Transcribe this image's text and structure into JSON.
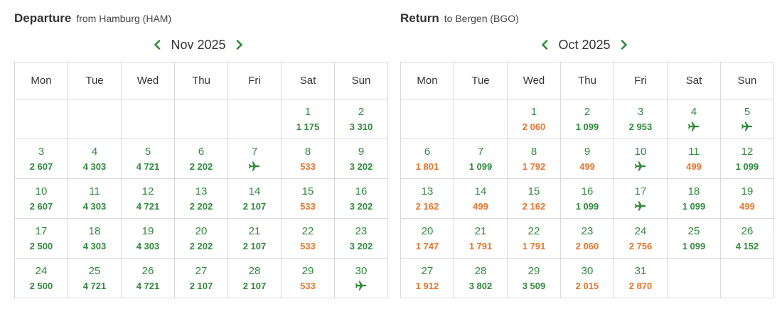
{
  "departure": {
    "title": "Departure",
    "subtitle": "from Hamburg (HAM)",
    "month": "Nov 2025",
    "weekdays": [
      "Mon",
      "Tue",
      "Wed",
      "Thu",
      "Fri",
      "Sat",
      "Sun"
    ],
    "weeks": [
      [
        null,
        null,
        null,
        null,
        null,
        {
          "day": "1",
          "price": "1 175",
          "tone": "green"
        },
        {
          "day": "2",
          "price": "3 310",
          "tone": "green"
        }
      ],
      [
        {
          "day": "3",
          "price": "2 607",
          "tone": "green"
        },
        {
          "day": "4",
          "price": "4 303",
          "tone": "green"
        },
        {
          "day": "5",
          "price": "4 721",
          "tone": "green"
        },
        {
          "day": "6",
          "price": "2 202",
          "tone": "green"
        },
        {
          "day": "7",
          "icon": "plane-icon"
        },
        {
          "day": "8",
          "price": "533",
          "tone": "orange"
        },
        {
          "day": "9",
          "price": "3 202",
          "tone": "green"
        }
      ],
      [
        {
          "day": "10",
          "price": "2 607",
          "tone": "green"
        },
        {
          "day": "11",
          "price": "4 303",
          "tone": "green"
        },
        {
          "day": "12",
          "price": "4 721",
          "tone": "green"
        },
        {
          "day": "13",
          "price": "2 202",
          "tone": "green"
        },
        {
          "day": "14",
          "price": "2 107",
          "tone": "green"
        },
        {
          "day": "15",
          "price": "533",
          "tone": "orange"
        },
        {
          "day": "16",
          "price": "3 202",
          "tone": "green"
        }
      ],
      [
        {
          "day": "17",
          "price": "2 500",
          "tone": "green"
        },
        {
          "day": "18",
          "price": "4 303",
          "tone": "green"
        },
        {
          "day": "19",
          "price": "4 303",
          "tone": "green"
        },
        {
          "day": "20",
          "price": "2 202",
          "tone": "green"
        },
        {
          "day": "21",
          "price": "2 107",
          "tone": "green"
        },
        {
          "day": "22",
          "price": "533",
          "tone": "orange"
        },
        {
          "day": "23",
          "price": "3 202",
          "tone": "green"
        }
      ],
      [
        {
          "day": "24",
          "price": "2 500",
          "tone": "green"
        },
        {
          "day": "25",
          "price": "4 721",
          "tone": "green"
        },
        {
          "day": "26",
          "price": "4 721",
          "tone": "green"
        },
        {
          "day": "27",
          "price": "2 107",
          "tone": "green"
        },
        {
          "day": "28",
          "price": "2 107",
          "tone": "green"
        },
        {
          "day": "29",
          "price": "533",
          "tone": "orange"
        },
        {
          "day": "30",
          "icon": "plane-icon"
        }
      ]
    ]
  },
  "return": {
    "title": "Return",
    "subtitle": "to Bergen (BGO)",
    "month": "Oct 2025",
    "weekdays": [
      "Mon",
      "Tue",
      "Wed",
      "Thu",
      "Fri",
      "Sat",
      "Sun"
    ],
    "weeks": [
      [
        null,
        null,
        {
          "day": "1",
          "price": "2 060",
          "tone": "orange"
        },
        {
          "day": "2",
          "price": "1 099",
          "tone": "green"
        },
        {
          "day": "3",
          "price": "2 953",
          "tone": "green"
        },
        {
          "day": "4",
          "icon": "plane-icon"
        },
        {
          "day": "5",
          "icon": "plane-icon"
        }
      ],
      [
        {
          "day": "6",
          "price": "1 801",
          "tone": "orange"
        },
        {
          "day": "7",
          "price": "1 099",
          "tone": "green"
        },
        {
          "day": "8",
          "price": "1 792",
          "tone": "orange"
        },
        {
          "day": "9",
          "price": "499",
          "tone": "orange"
        },
        {
          "day": "10",
          "icon": "plane-icon"
        },
        {
          "day": "11",
          "price": "499",
          "tone": "orange"
        },
        {
          "day": "12",
          "price": "1 099",
          "tone": "green"
        }
      ],
      [
        {
          "day": "13",
          "price": "2 162",
          "tone": "orange"
        },
        {
          "day": "14",
          "price": "499",
          "tone": "orange"
        },
        {
          "day": "15",
          "price": "2 162",
          "tone": "orange"
        },
        {
          "day": "16",
          "price": "1 099",
          "tone": "green"
        },
        {
          "day": "17",
          "icon": "plane-icon"
        },
        {
          "day": "18",
          "price": "1 099",
          "tone": "green"
        },
        {
          "day": "19",
          "price": "499",
          "tone": "orange"
        }
      ],
      [
        {
          "day": "20",
          "price": "1 747",
          "tone": "orange"
        },
        {
          "day": "21",
          "price": "1 791",
          "tone": "orange"
        },
        {
          "day": "22",
          "price": "1 791",
          "tone": "orange"
        },
        {
          "day": "23",
          "price": "2 060",
          "tone": "orange"
        },
        {
          "day": "24",
          "price": "2 756",
          "tone": "orange"
        },
        {
          "day": "25",
          "price": "1 099",
          "tone": "green"
        },
        {
          "day": "26",
          "price": "4 152",
          "tone": "green"
        }
      ],
      [
        {
          "day": "27",
          "price": "1 912",
          "tone": "orange"
        },
        {
          "day": "28",
          "price": "3 802",
          "tone": "green"
        },
        {
          "day": "29",
          "price": "3 509",
          "tone": "green"
        },
        {
          "day": "30",
          "price": "2 015",
          "tone": "orange"
        },
        {
          "day": "31",
          "price": "2 870",
          "tone": "orange"
        },
        null,
        null
      ]
    ]
  },
  "icons": {
    "prev": "chevron-left-icon",
    "next": "chevron-right-icon",
    "no_price": "plane-icon"
  },
  "colors": {
    "green": "#2e8b3a",
    "orange": "#e8732a",
    "border": "#d9d9d9"
  }
}
